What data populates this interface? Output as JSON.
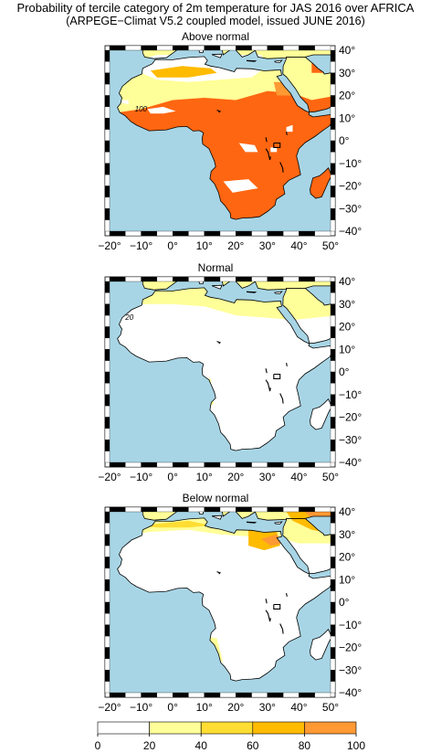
{
  "title": "Probability of tercile category of 2m temperature for JAS 2016 over AFRICA",
  "subtitle": "(ARPEGE−Climat V5.2 coupled model, issued JUNE  2016)",
  "panels": [
    {
      "title": "Above normal",
      "contour_label": "100"
    },
    {
      "title": "Normal",
      "contour_label": "20"
    },
    {
      "title": "Below normal",
      "contour_label": ""
    }
  ],
  "lon_labels": [
    "−20°",
    "−10°",
    "0°",
    "10°",
    "20°",
    "30°",
    "40°",
    "50°"
  ],
  "lat_labels": [
    "40°",
    "30°",
    "20°",
    "10°",
    "0°",
    "−10°",
    "−20°",
    "−30°",
    "−40°"
  ],
  "colorbar": {
    "ticks": [
      "0",
      "20",
      "40",
      "60",
      "80",
      "100"
    ],
    "colors": [
      "#ffffff",
      "#ffff99",
      "#ffdd33",
      "#ffbb00",
      "#ff9933",
      "#ff6611"
    ]
  },
  "colors": {
    "ocean": "#a8d5e5",
    "land": "#ffffff"
  }
}
